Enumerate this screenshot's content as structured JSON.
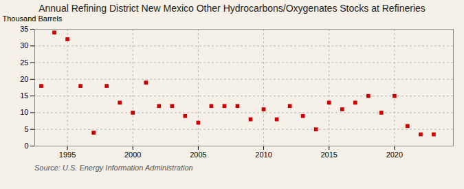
{
  "chart_data": {
    "type": "scatter",
    "title": "Annual Refining District New Mexico Other Hydrocarbons/Oxygenates Stocks at Refineries",
    "ylabel": "Thousand Barrels",
    "annotations": [
      "Source: U.S. Energy Information Administration"
    ],
    "x": [
      1993,
      1994,
      1995,
      1996,
      1997,
      1998,
      1999,
      2000,
      2001,
      2002,
      2003,
      2004,
      2005,
      2006,
      2007,
      2008,
      2009,
      2010,
      2011,
      2012,
      2013,
      2014,
      2015,
      2016,
      2017,
      2018,
      2019,
      2020,
      2021,
      2022,
      2023
    ],
    "values": [
      18,
      34,
      32,
      18,
      4,
      18,
      13,
      10,
      19,
      12,
      12,
      9,
      7,
      12,
      12,
      12,
      8,
      11,
      8,
      12,
      9,
      5,
      13,
      11,
      13,
      15,
      10,
      15,
      6,
      3.5,
      3.5
    ],
    "color": "#cc0000",
    "marker": "square",
    "xlim": [
      1992.5,
      2024.5
    ],
    "xticks": [
      1995,
      2000,
      2005,
      2010,
      2015,
      2020
    ],
    "ylim": [
      0,
      35
    ],
    "yticks": [
      0,
      5,
      10,
      15,
      20,
      25,
      30,
      35
    ],
    "grid": true
  }
}
